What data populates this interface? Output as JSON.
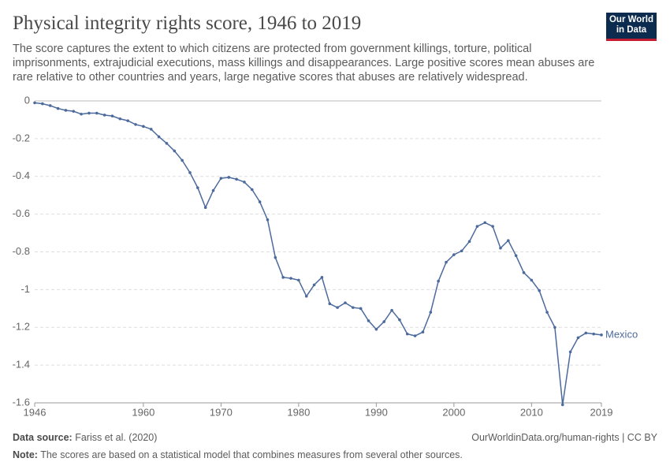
{
  "chart_data": {
    "type": "line",
    "title": "Physical integrity rights score, 1946 to 2019",
    "subtitle": "The score captures the extent to which citizens are protected from government killings, torture, political imprisonments, extrajudicial executions, mass killings and disappearances. Large positive scores mean abuses are rare relative to other countries and years, large negative scores that abuses are relatively widespread.",
    "logo": [
      "Our World",
      "in Data"
    ],
    "source_label": "Data source:",
    "source": "Fariss et al. (2020)",
    "url": "OurWorldinData.org/human-rights | CC BY",
    "note_label": "Note:",
    "note": "The scores are based on a statistical model that combines measures from several other sources.",
    "x": [
      1946,
      1947,
      1948,
      1949,
      1950,
      1951,
      1952,
      1953,
      1954,
      1955,
      1956,
      1957,
      1958,
      1959,
      1960,
      1961,
      1962,
      1963,
      1964,
      1965,
      1966,
      1967,
      1968,
      1969,
      1970,
      1971,
      1972,
      1973,
      1974,
      1975,
      1976,
      1977,
      1978,
      1979,
      1980,
      1981,
      1982,
      1983,
      1984,
      1985,
      1986,
      1987,
      1988,
      1989,
      1990,
      1991,
      1992,
      1993,
      1994,
      1995,
      1996,
      1997,
      1998,
      1999,
      2000,
      2001,
      2002,
      2003,
      2004,
      2005,
      2006,
      2007,
      2008,
      2009,
      2010,
      2011,
      2012,
      2013,
      2014,
      2015,
      2016,
      2017,
      2018,
      2019
    ],
    "series": [
      {
        "name": "Mexico",
        "color": "#4c6a9c",
        "values": [
          -0.01,
          -0.015,
          -0.025,
          -0.04,
          -0.05,
          -0.055,
          -0.07,
          -0.065,
          -0.065,
          -0.075,
          -0.08,
          -0.095,
          -0.105,
          -0.125,
          -0.135,
          -0.15,
          -0.19,
          -0.225,
          -0.265,
          -0.315,
          -0.38,
          -0.46,
          -0.565,
          -0.475,
          -0.41,
          -0.405,
          -0.415,
          -0.43,
          -0.47,
          -0.535,
          -0.63,
          -0.83,
          -0.935,
          -0.94,
          -0.95,
          -1.035,
          -0.975,
          -0.935,
          -1.075,
          -1.095,
          -1.07,
          -1.095,
          -1.1,
          -1.165,
          -1.21,
          -1.17,
          -1.11,
          -1.16,
          -1.235,
          -1.245,
          -1.225,
          -1.12,
          -0.955,
          -0.855,
          -0.815,
          -0.795,
          -0.745,
          -0.665,
          -0.645,
          -0.665,
          -0.78,
          -0.74,
          -0.82,
          -0.91,
          -0.95,
          -1.005,
          -1.12,
          -1.2,
          -1.61,
          -1.33,
          -1.255,
          -1.23,
          -1.235,
          -1.24
        ]
      }
    ],
    "xlim": [
      1946,
      2019
    ],
    "xticks": [
      1946,
      1960,
      1970,
      1980,
      1990,
      2000,
      2010,
      2019
    ],
    "ylim": [
      -1.6,
      0
    ],
    "yticks": [
      0,
      -0.2,
      -0.4,
      -0.6,
      -0.8,
      -1,
      -1.2,
      -1.4,
      -1.6
    ],
    "grid": true
  }
}
